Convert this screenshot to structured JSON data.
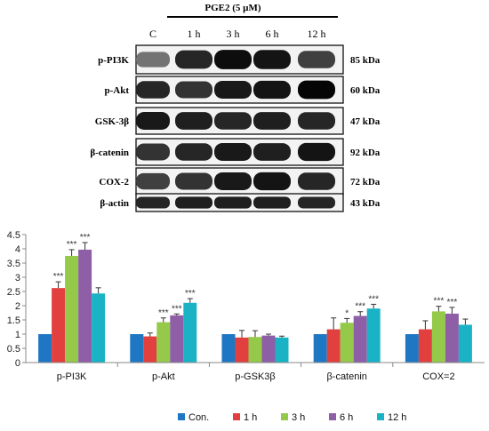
{
  "blot": {
    "treatment_label": "PGE2 (5 µM)",
    "lanes": [
      "C",
      "1 h",
      "3 h",
      "6 h",
      "12 h"
    ],
    "rows": [
      {
        "protein": "p-PI3K",
        "size": "85 kDa",
        "intensity": [
          0.55,
          0.85,
          0.95,
          0.92,
          0.75
        ]
      },
      {
        "protein": "p-Akt",
        "size": "60 kDa",
        "intensity": [
          0.85,
          0.8,
          0.9,
          0.92,
          0.98
        ]
      },
      {
        "protein": "GSK-3β",
        "size": "47 kDa",
        "intensity": [
          0.9,
          0.88,
          0.85,
          0.88,
          0.85
        ]
      },
      {
        "protein": "β-catenin",
        "size": "92 kDa",
        "intensity": [
          0.8,
          0.85,
          0.9,
          0.88,
          0.92
        ]
      },
      {
        "protein": "COX-2",
        "size": "72 kDa",
        "intensity": [
          0.75,
          0.8,
          0.9,
          0.92,
          0.85
        ]
      },
      {
        "protein": "β-actin",
        "size": "43 kDa",
        "intensity": [
          0.85,
          0.88,
          0.88,
          0.88,
          0.85
        ]
      }
    ]
  },
  "chart_data": {
    "type": "bar",
    "categories": [
      "p-PI3K",
      "p-Akt",
      "p-GSK3β",
      "β-catenin",
      "COX=2"
    ],
    "series": [
      {
        "name": "Con.",
        "color": "#1f77c4",
        "values": [
          1,
          1,
          1,
          1,
          1
        ],
        "errors": [
          0,
          0,
          0,
          0,
          0
        ],
        "sig": [
          "",
          "",
          "",
          "",
          ""
        ]
      },
      {
        "name": "1 h",
        "color": "#e2403f",
        "values": [
          2.62,
          0.92,
          0.88,
          1.17,
          1.17
        ],
        "errors": [
          0.22,
          0.12,
          0.25,
          0.4,
          0.3
        ],
        "sig": [
          "***",
          "",
          "",
          "",
          ""
        ]
      },
      {
        "name": "3 h",
        "color": "#94c94a",
        "values": [
          3.75,
          1.42,
          0.9,
          1.4,
          1.8
        ],
        "errors": [
          0.22,
          0.15,
          0.22,
          0.15,
          0.18
        ],
        "sig": [
          "***",
          "***",
          "",
          "*",
          "***"
        ]
      },
      {
        "name": "6 h",
        "color": "#8e5fa6",
        "values": [
          3.97,
          1.66,
          0.95,
          1.64,
          1.72
        ],
        "errors": [
          0.25,
          0.05,
          0.05,
          0.15,
          0.22
        ],
        "sig": [
          "***",
          "***",
          "",
          "***",
          "***"
        ]
      },
      {
        "name": "12 h",
        "color": "#1ab3c6",
        "values": [
          2.43,
          2.1,
          0.88,
          1.9,
          1.33
        ],
        "errors": [
          0.2,
          0.15,
          0.05,
          0.15,
          0.2
        ],
        "sig": [
          "",
          "***",
          "",
          "***",
          ""
        ]
      }
    ],
    "ylim": [
      0,
      4.5
    ],
    "yticks": [
      "0",
      "0.5",
      "1",
      "1.5",
      "2",
      "2.5",
      "3",
      "3.5",
      "4",
      "4.5"
    ],
    "legend_position": "bottom",
    "grid": false
  }
}
